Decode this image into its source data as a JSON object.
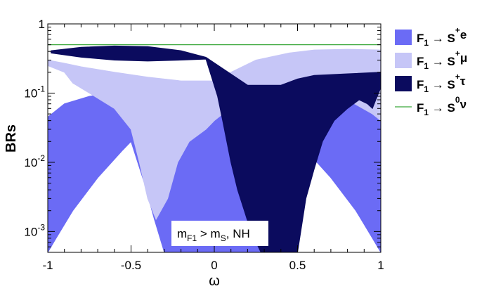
{
  "chart_data": {
    "type": "scatter",
    "title": "",
    "xlabel": "ω",
    "ylabel": "BRs",
    "xlim": [
      -1,
      1
    ],
    "ylim": [
      0.0005,
      1
    ],
    "yscale": "log",
    "x_ticks": [
      "-1",
      "-0.5",
      "0",
      "0.5",
      "1"
    ],
    "y_ticks": [
      {
        "value": 0.001,
        "base": "10",
        "exp": "-3"
      },
      {
        "value": 0.01,
        "base": "10",
        "exp": "-2"
      },
      {
        "value": 0.1,
        "base": "10",
        "exp": "-1"
      },
      {
        "value": 1,
        "base": "1",
        "exp": ""
      }
    ],
    "annotation": {
      "main": "m",
      "sub1": "F1",
      "mid": " > m",
      "sub2": "S",
      "tail": ", NH"
    },
    "legend_position": "right",
    "series": [
      {
        "name": "F1 → S+e",
        "legend": {
          "base": "F",
          "sub": "1",
          "arrow": " → ",
          "S": "S",
          "sup": "+",
          "tail": "e"
        },
        "color": "#6b6bf5",
        "kind": "band",
        "upper": [
          [
            -1,
            0.045
          ],
          [
            -0.9,
            0.07
          ],
          [
            -0.75,
            0.09
          ],
          [
            -0.5,
            0.11
          ],
          [
            -0.3,
            0.12
          ],
          [
            0,
            0.13
          ],
          [
            0.3,
            0.12
          ],
          [
            0.5,
            0.11
          ],
          [
            0.75,
            0.09
          ],
          [
            0.9,
            0.07
          ],
          [
            1,
            0.045
          ]
        ],
        "lower": [
          [
            -1,
            0.0005
          ],
          [
            -0.95,
            0.0008
          ],
          [
            -0.85,
            0.002
          ],
          [
            -0.7,
            0.006
          ],
          [
            -0.55,
            0.015
          ],
          [
            -0.5,
            0.02
          ],
          [
            -0.42,
            0.005
          ],
          [
            -0.36,
            0.0015
          ],
          [
            -0.3,
            0.0005
          ],
          [
            0.3,
            0.0005
          ],
          [
            0.36,
            0.0015
          ],
          [
            0.42,
            0.005
          ],
          [
            0.5,
            0.02
          ],
          [
            0.55,
            0.015
          ],
          [
            0.7,
            0.006
          ],
          [
            0.85,
            0.002
          ],
          [
            0.95,
            0.0008
          ],
          [
            1,
            0.0005
          ]
        ]
      },
      {
        "name": "F1 → S+μ",
        "legend": {
          "base": "F",
          "sub": "1",
          "arrow": " → ",
          "S": "S",
          "sup": "+",
          "tail": "μ"
        },
        "color": "#c6c6f7",
        "kind": "band",
        "upper": [
          [
            -1,
            0.3
          ],
          [
            -0.9,
            0.27
          ],
          [
            -0.8,
            0.24
          ],
          [
            -0.6,
            0.2
          ],
          [
            -0.4,
            0.17
          ],
          [
            -0.2,
            0.15
          ],
          [
            0,
            0.15
          ],
          [
            0.1,
            0.2
          ],
          [
            0.25,
            0.3
          ],
          [
            0.45,
            0.38
          ],
          [
            0.6,
            0.42
          ],
          [
            0.8,
            0.43
          ],
          [
            1,
            0.42
          ]
        ],
        "lower": [
          [
            -1,
            0.25
          ],
          [
            -0.9,
            0.2
          ],
          [
            -0.85,
            0.14
          ],
          [
            -0.75,
            0.1
          ],
          [
            -0.6,
            0.06
          ],
          [
            -0.5,
            0.03
          ],
          [
            -0.45,
            0.01
          ],
          [
            -0.4,
            0.003
          ],
          [
            -0.35,
            0.0015
          ],
          [
            -0.28,
            0.003
          ],
          [
            -0.22,
            0.01
          ],
          [
            -0.15,
            0.02
          ],
          [
            -0.05,
            0.03
          ],
          [
            0,
            0.04
          ],
          [
            0.05,
            0.05
          ],
          [
            0.2,
            0.08
          ],
          [
            0.4,
            0.1
          ],
          [
            0.6,
            0.1
          ],
          [
            0.8,
            0.08
          ],
          [
            0.95,
            0.05
          ],
          [
            1,
            0.04
          ]
        ]
      },
      {
        "name": "F1 → S+τ",
        "legend": {
          "base": "F",
          "sub": "1",
          "arrow": " → ",
          "S": "S",
          "sup": "+",
          "tail": "τ"
        },
        "color": "#0b0b5e",
        "kind": "band",
        "upper": [
          [
            -0.98,
            0.41
          ],
          [
            -0.8,
            0.46
          ],
          [
            -0.6,
            0.48
          ],
          [
            -0.4,
            0.47
          ],
          [
            -0.2,
            0.41
          ],
          [
            -0.05,
            0.33
          ],
          [
            0.2,
            0.13
          ],
          [
            0.4,
            0.13
          ],
          [
            0.5,
            0.16
          ],
          [
            0.6,
            0.18
          ],
          [
            0.8,
            0.19
          ],
          [
            1,
            0.2
          ]
        ],
        "lower": [
          [
            -0.98,
            0.38
          ],
          [
            -0.8,
            0.33
          ],
          [
            -0.6,
            0.3
          ],
          [
            -0.4,
            0.29
          ],
          [
            -0.2,
            0.3
          ],
          [
            -0.05,
            0.31
          ],
          [
            0.02,
            0.09
          ],
          [
            0.05,
            0.04
          ],
          [
            0.1,
            0.01
          ],
          [
            0.14,
            0.004
          ],
          [
            0.18,
            0.002
          ],
          [
            0.22,
            0.001
          ],
          [
            0.28,
            0.0005
          ],
          [
            0.5,
            0.0005
          ],
          [
            0.55,
            0.003
          ],
          [
            0.6,
            0.008
          ],
          [
            0.65,
            0.02
          ],
          [
            0.72,
            0.04
          ],
          [
            0.8,
            0.06
          ],
          [
            0.87,
            0.08
          ],
          [
            0.92,
            0.07
          ],
          [
            0.95,
            0.06
          ],
          [
            0.97,
            0.08
          ],
          [
            1,
            0.12
          ]
        ]
      },
      {
        "name": "F1 → S0ν",
        "legend": {
          "base": "F",
          "sub": "1",
          "arrow": " → ",
          "S": "S",
          "sup": "0",
          "tail": "ν"
        },
        "color": "#3aa83a",
        "kind": "line",
        "x": [
          -1,
          1
        ],
        "y": [
          0.5,
          0.5
        ]
      }
    ]
  }
}
